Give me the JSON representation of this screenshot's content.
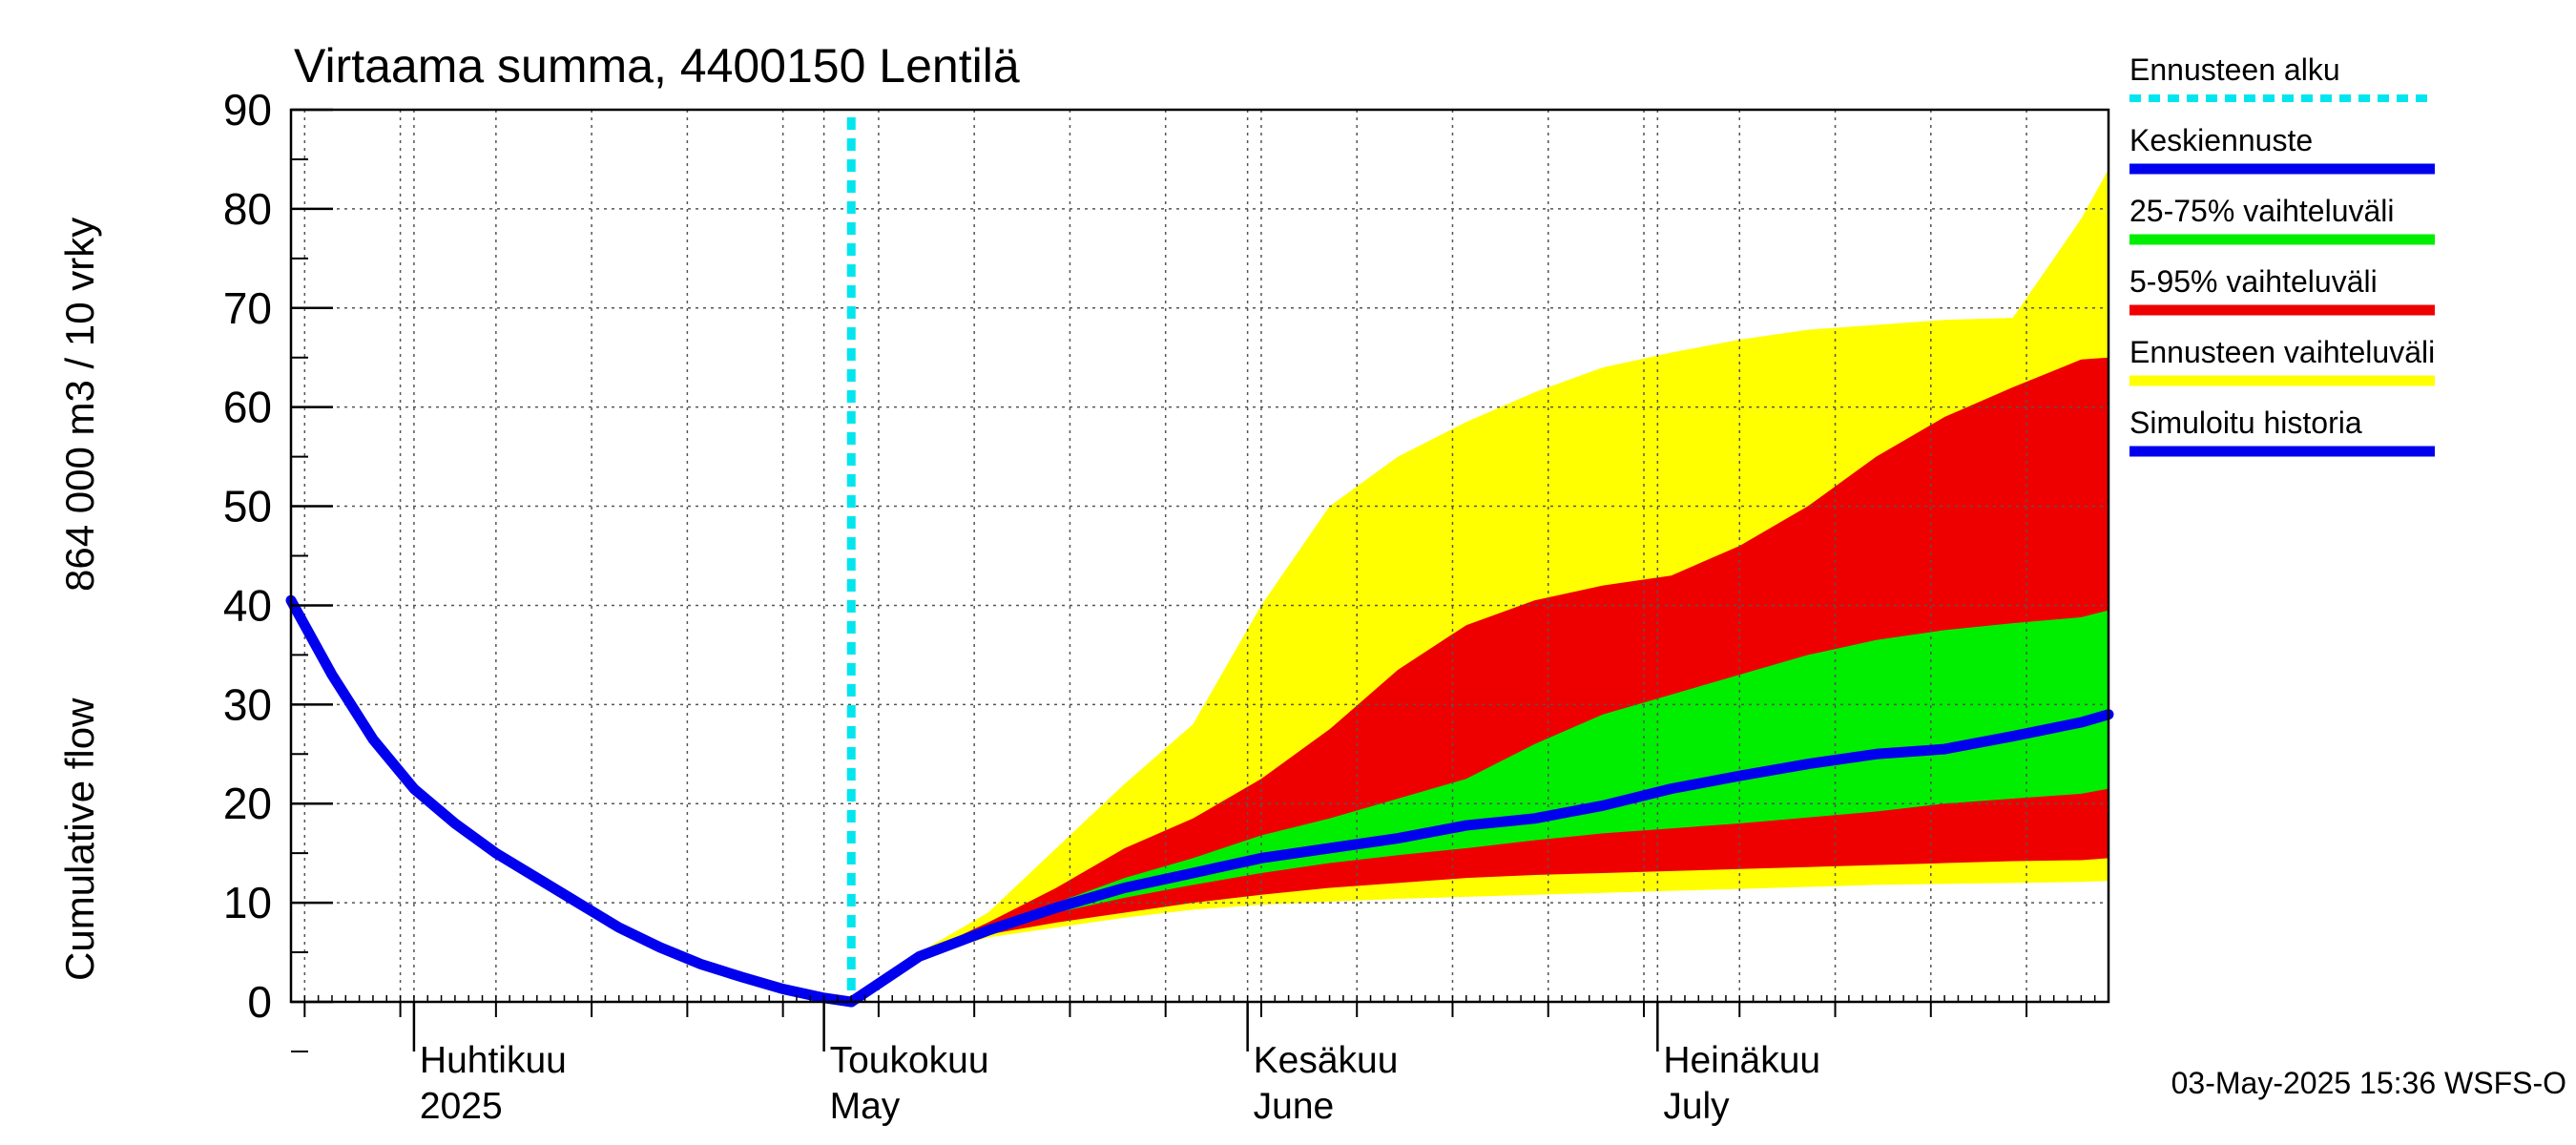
{
  "chart_data": {
    "type": "area",
    "title": "Virtaama summa, 4400150 Lentilä",
    "ylabel_top": "864 000 m3 / 10 vrky",
    "ylabel_bottom": "Cumulative flow",
    "xlabel": "",
    "x_range": [
      "2025-03-23",
      "2025-08-03"
    ],
    "ylim": [
      0,
      90
    ],
    "yticks": [
      0,
      10,
      20,
      30,
      40,
      50,
      60,
      70,
      80,
      90
    ],
    "grid": true,
    "forecast_start": "2025-05-03",
    "month_labels": [
      {
        "fi": "Huhtikuu",
        "en": "2025",
        "date": "2025-04-01"
      },
      {
        "fi": "Toukokuu",
        "en": "May",
        "date": "2025-05-01"
      },
      {
        "fi": "Kesäkuu",
        "en": "June",
        "date": "2025-06-01"
      },
      {
        "fi": "Heinäkuu",
        "en": "July",
        "date": "2025-07-01"
      }
    ],
    "legend_position": "right",
    "legend": [
      {
        "label": "Ennusteen alku",
        "color": "#00e5ee",
        "style": "dotted"
      },
      {
        "label": "Keskiennuste",
        "color": "#0000ee",
        "style": "line"
      },
      {
        "label": "25-75% vaihteluväli",
        "color": "#00ee00",
        "style": "band"
      },
      {
        "label": "5-95% vaihteluväli",
        "color": "#ee0000",
        "style": "band"
      },
      {
        "label": "Ennusteen vaihteluväli",
        "color": "#ffff00",
        "style": "band"
      },
      {
        "label": "Simuloitu historia",
        "color": "#0000ee",
        "style": "line"
      }
    ],
    "history": {
      "x": [
        "2025-03-23",
        "2025-03-26",
        "2025-03-29",
        "2025-04-01",
        "2025-04-04",
        "2025-04-07",
        "2025-04-10",
        "2025-04-13",
        "2025-04-16",
        "2025-04-19",
        "2025-04-22",
        "2025-04-25",
        "2025-04-28",
        "2025-05-01",
        "2025-05-03"
      ],
      "y": [
        40.5,
        33.0,
        26.5,
        21.5,
        18.0,
        15.0,
        12.5,
        10.0,
        7.5,
        5.5,
        3.8,
        2.5,
        1.3,
        0.4,
        0.0
      ]
    },
    "bands": {
      "x": [
        "2025-05-03",
        "2025-05-08",
        "2025-05-13",
        "2025-05-18",
        "2025-05-23",
        "2025-05-28",
        "2025-06-02",
        "2025-06-07",
        "2025-06-12",
        "2025-06-17",
        "2025-06-22",
        "2025-06-27",
        "2025-07-02",
        "2025-07-07",
        "2025-07-12",
        "2025-07-17",
        "2025-07-22",
        "2025-07-27",
        "2025-08-01",
        "2025-08-03"
      ],
      "min": [
        0,
        4.5,
        6.5,
        7.5,
        8.5,
        9.3,
        9.8,
        10.1,
        10.4,
        10.6,
        10.8,
        11.0,
        11.2,
        11.4,
        11.6,
        11.8,
        11.9,
        12.0,
        12.1,
        12.2
      ],
      "p05": [
        0,
        4.5,
        6.8,
        8.0,
        9.0,
        10.0,
        10.8,
        11.5,
        12.0,
        12.5,
        12.8,
        13.0,
        13.2,
        13.4,
        13.6,
        13.8,
        14.0,
        14.2,
        14.3,
        14.5
      ],
      "p25": [
        0,
        4.6,
        7.2,
        9.0,
        10.5,
        11.8,
        13.0,
        14.0,
        14.8,
        15.5,
        16.3,
        17.0,
        17.5,
        18.0,
        18.6,
        19.2,
        20.0,
        20.5,
        21.0,
        21.5
      ],
      "p75": [
        0,
        4.7,
        7.5,
        10.0,
        12.5,
        14.5,
        16.8,
        18.5,
        20.5,
        22.5,
        26.0,
        29.0,
        31.0,
        33.0,
        35.0,
        36.5,
        37.5,
        38.2,
        38.8,
        39.5
      ],
      "p95": [
        0,
        4.8,
        8.0,
        11.5,
        15.5,
        18.5,
        22.5,
        27.5,
        33.5,
        38.0,
        40.5,
        42.0,
        43.0,
        46.0,
        50.0,
        55.0,
        59.0,
        62.0,
        64.8,
        65.0
      ],
      "max": [
        0,
        5.0,
        9.0,
        15.5,
        22.0,
        28.0,
        40.0,
        50.0,
        55.0,
        58.5,
        61.5,
        64.0,
        65.5,
        66.8,
        67.8,
        68.3,
        68.8,
        69.0,
        79.0,
        84.0
      ],
      "median": [
        0,
        4.6,
        7.2,
        9.5,
        11.5,
        13.0,
        14.5,
        15.5,
        16.5,
        17.8,
        18.5,
        19.8,
        21.5,
        22.8,
        24.0,
        25.0,
        25.5,
        26.8,
        28.2,
        29.0
      ]
    }
  },
  "timestamp": "03-May-2025 15:36 WSFS-O"
}
